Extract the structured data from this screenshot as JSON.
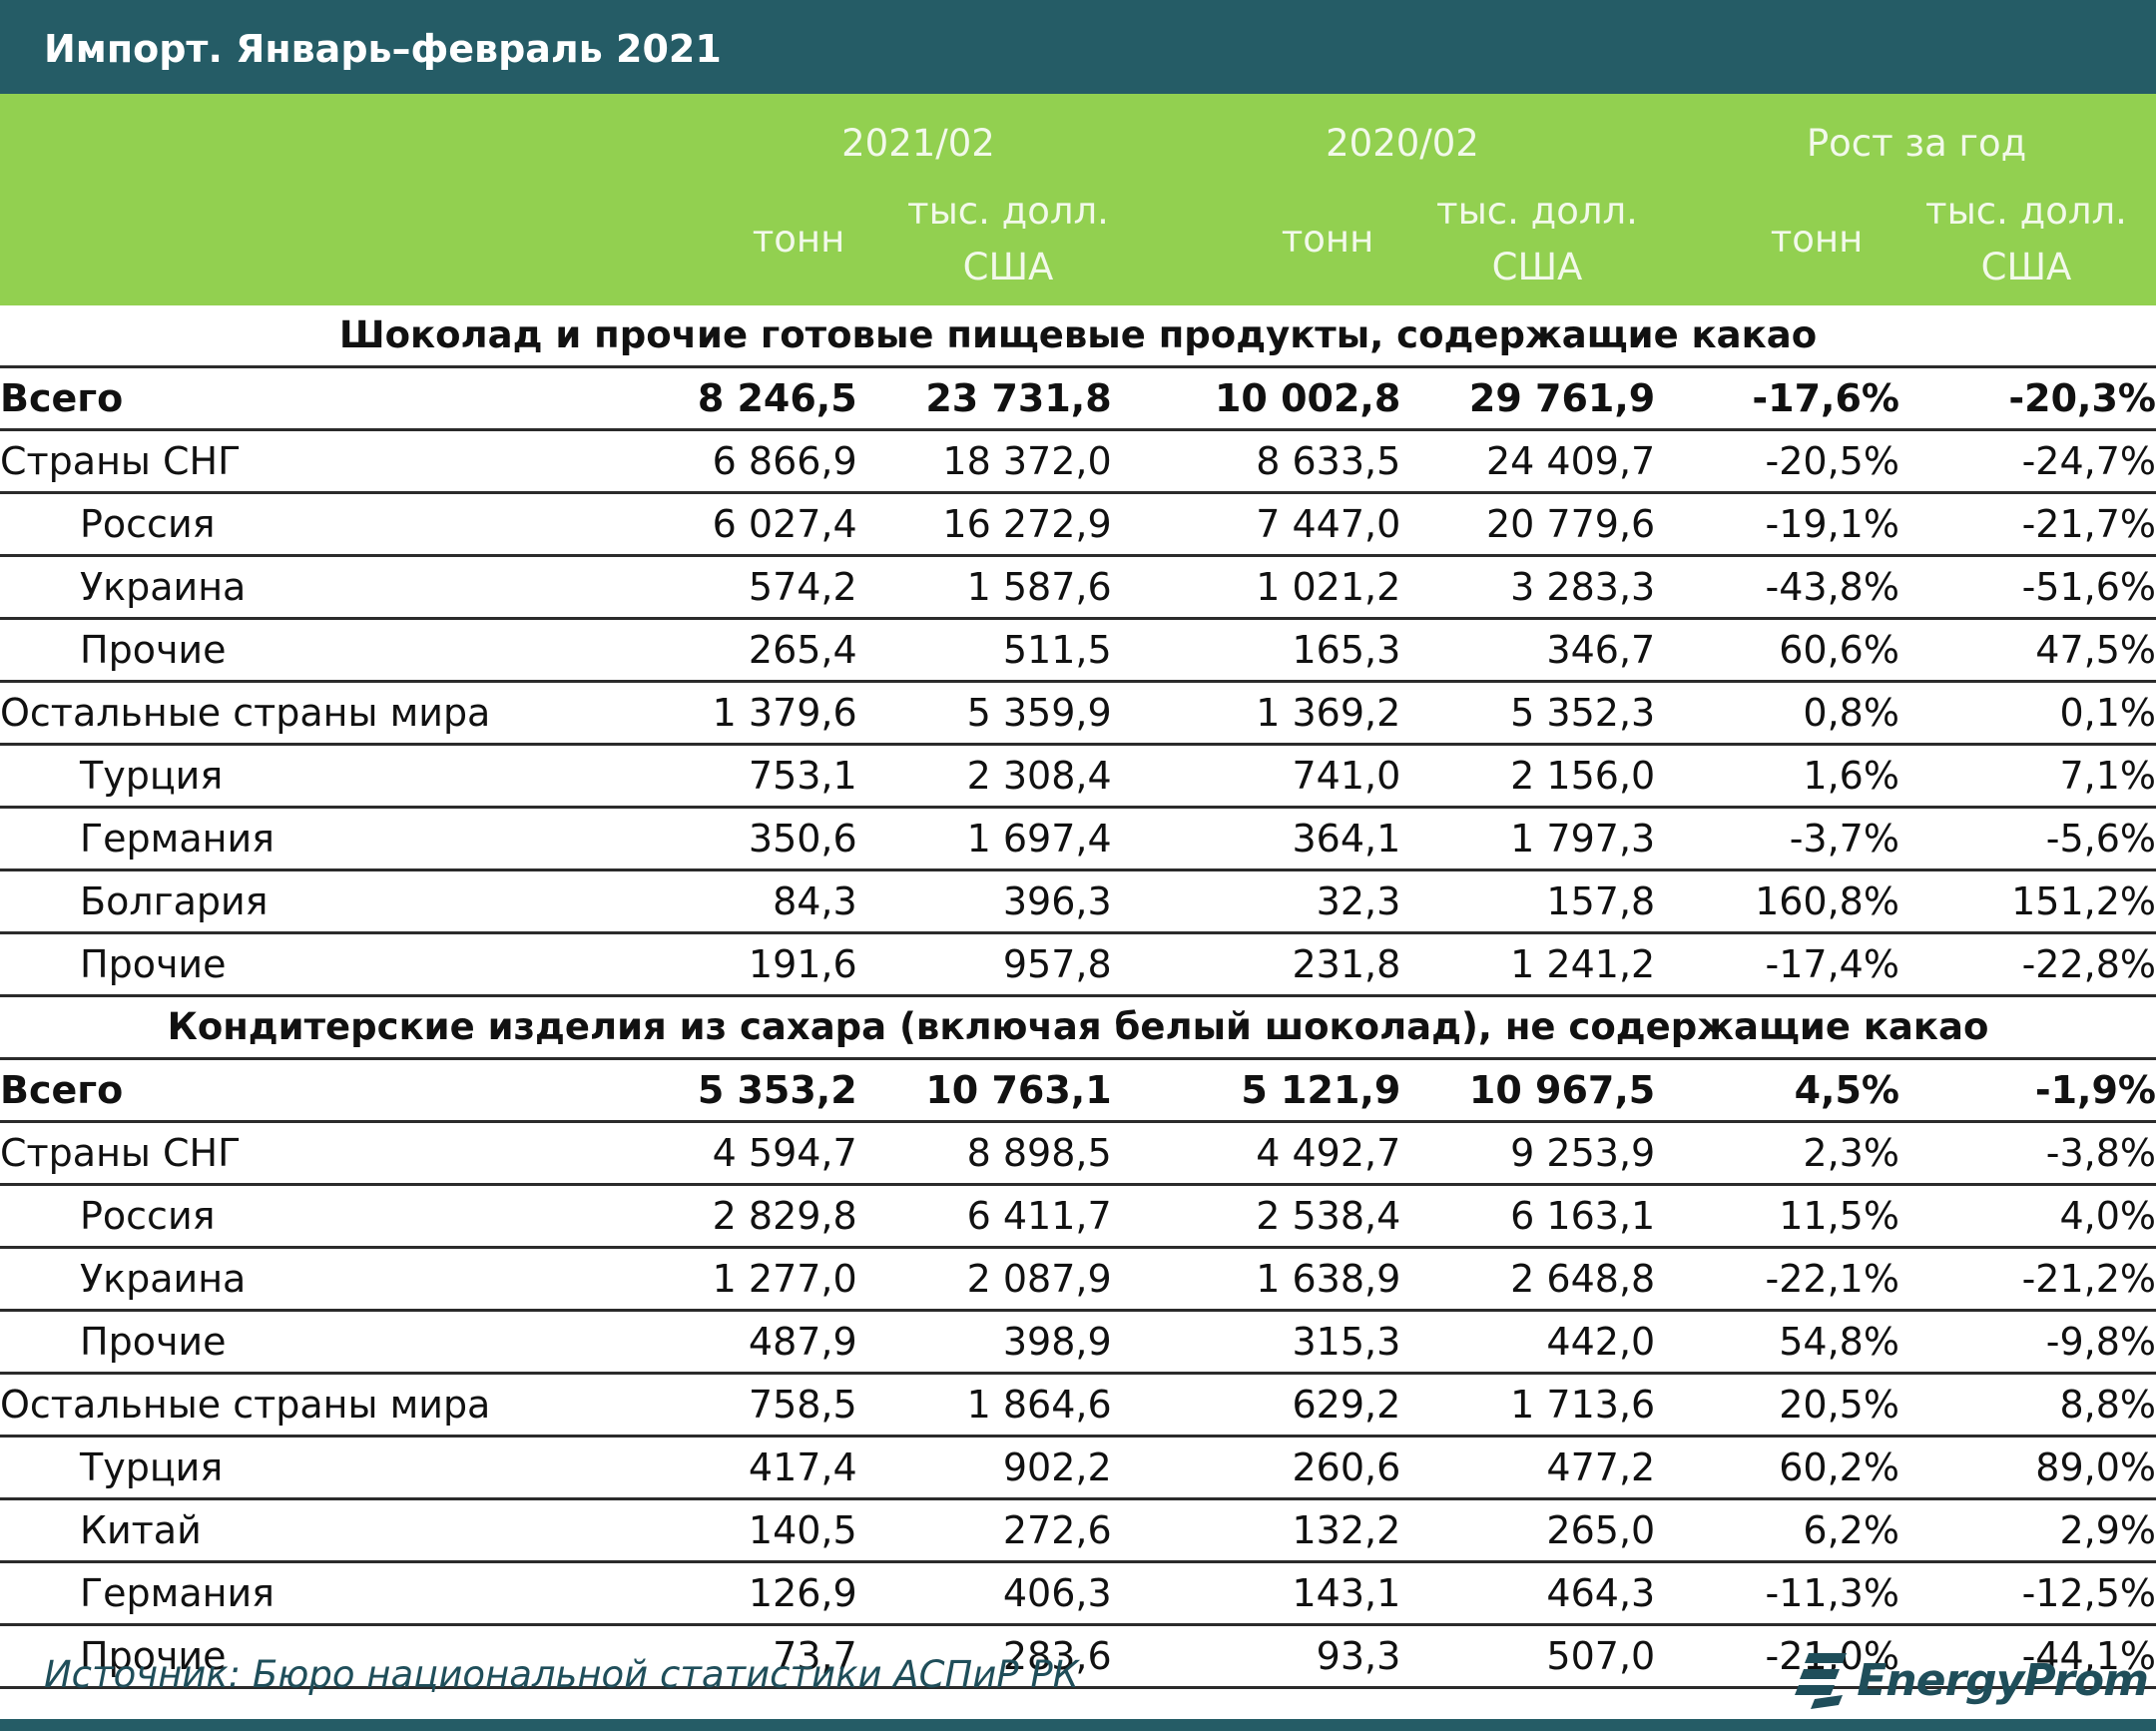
{
  "title": "Импорт. Январь–февраль 2021",
  "header": {
    "groups": [
      "2021/02",
      "2020/02",
      "Рост за год"
    ],
    "unit_tonnes": "тонн",
    "unit_usd_line1": "тыс. долл.",
    "unit_usd_line2": "США"
  },
  "sections": [
    {
      "title": "Шоколад и прочие готовые пищевые продукты, содержащие какао",
      "rows": [
        {
          "name": "Всего",
          "level": "total",
          "values": [
            "8 246,5",
            "23 731,8",
            "10 002,8",
            "29 761,9",
            "-17,6%",
            "-20,3%"
          ]
        },
        {
          "name": "Страны СНГ",
          "level": "group",
          "values": [
            "6 866,9",
            "18 372,0",
            "8 633,5",
            "24 409,7",
            "-20,5%",
            "-24,7%"
          ]
        },
        {
          "name": "Россия",
          "level": "sub",
          "values": [
            "6 027,4",
            "16 272,9",
            "7 447,0",
            "20 779,6",
            "-19,1%",
            "-21,7%"
          ]
        },
        {
          "name": "Украина",
          "level": "sub",
          "values": [
            "574,2",
            "1 587,6",
            "1 021,2",
            "3 283,3",
            "-43,8%",
            "-51,6%"
          ]
        },
        {
          "name": "Прочие",
          "level": "sub",
          "values": [
            "265,4",
            "511,5",
            "165,3",
            "346,7",
            "60,6%",
            "47,5%"
          ]
        },
        {
          "name": "Остальные страны мира",
          "level": "group",
          "values": [
            "1 379,6",
            "5 359,9",
            "1 369,2",
            "5 352,3",
            "0,8%",
            "0,1%"
          ]
        },
        {
          "name": "Турция",
          "level": "sub",
          "values": [
            "753,1",
            "2 308,4",
            "741,0",
            "2 156,0",
            "1,6%",
            "7,1%"
          ]
        },
        {
          "name": "Германия",
          "level": "sub",
          "values": [
            "350,6",
            "1 697,4",
            "364,1",
            "1 797,3",
            "-3,7%",
            "-5,6%"
          ]
        },
        {
          "name": "Болгария",
          "level": "sub",
          "values": [
            "84,3",
            "396,3",
            "32,3",
            "157,8",
            "160,8%",
            "151,2%"
          ]
        },
        {
          "name": "Прочие",
          "level": "sub",
          "values": [
            "191,6",
            "957,8",
            "231,8",
            "1 241,2",
            "-17,4%",
            "-22,8%"
          ]
        }
      ]
    },
    {
      "title": "Кондитерские изделия из сахара (включая белый шоколад), не содержащие какао",
      "rows": [
        {
          "name": "Всего",
          "level": "total",
          "values": [
            "5 353,2",
            "10 763,1",
            "5 121,9",
            "10 967,5",
            "4,5%",
            "-1,9%"
          ]
        },
        {
          "name": "Страны СНГ",
          "level": "group",
          "values": [
            "4 594,7",
            "8 898,5",
            "4 492,7",
            "9 253,9",
            "2,3%",
            "-3,8%"
          ]
        },
        {
          "name": "Россия",
          "level": "sub",
          "values": [
            "2 829,8",
            "6 411,7",
            "2 538,4",
            "6 163,1",
            "11,5%",
            "4,0%"
          ]
        },
        {
          "name": "Украина",
          "level": "sub",
          "values": [
            "1 277,0",
            "2 087,9",
            "1 638,9",
            "2 648,8",
            "-22,1%",
            "-21,2%"
          ]
        },
        {
          "name": "Прочие",
          "level": "sub",
          "values": [
            "487,9",
            "398,9",
            "315,3",
            "442,0",
            "54,8%",
            "-9,8%"
          ]
        },
        {
          "name": "Остальные страны мира",
          "level": "group",
          "values": [
            "758,5",
            "1 864,6",
            "629,2",
            "1 713,6",
            "20,5%",
            "8,8%"
          ]
        },
        {
          "name": "Турция",
          "level": "sub",
          "values": [
            "417,4",
            "902,2",
            "260,6",
            "477,2",
            "60,2%",
            "89,0%"
          ]
        },
        {
          "name": "Китай",
          "level": "sub",
          "values": [
            "140,5",
            "272,6",
            "132,2",
            "265,0",
            "6,2%",
            "2,9%"
          ]
        },
        {
          "name": "Германия",
          "level": "sub",
          "values": [
            "126,9",
            "406,3",
            "143,1",
            "464,3",
            "-11,3%",
            "-12,5%"
          ]
        },
        {
          "name": "Прочие",
          "level": "sub",
          "values": [
            "73,7",
            "283,6",
            "93,3",
            "507,0",
            "-21,0%",
            "-44,1%"
          ]
        }
      ]
    }
  ],
  "footer": {
    "source": "Источник: Бюро национальной статистики АСПиР РК",
    "logo_text": "EnergyProm",
    "logo_icon": "energyprom-logo-icon"
  },
  "colors": {
    "title_bar": "#255c66",
    "header_band": "#92d050",
    "header_text": "#f2f9ea",
    "footer_text": "#1f4e5a"
  }
}
